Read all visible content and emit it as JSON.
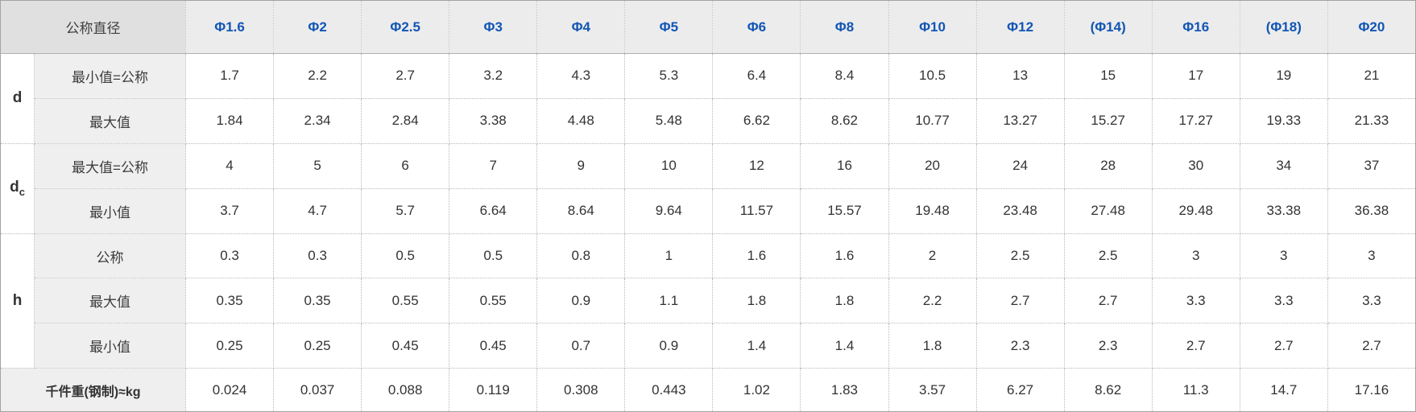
{
  "chart_data": {
    "type": "table",
    "corner_label": "公称直径",
    "columns": [
      "Φ1.6",
      "Φ2",
      "Φ2.5",
      "Φ3",
      "Φ4",
      "Φ5",
      "Φ6",
      "Φ8",
      "Φ10",
      "Φ12",
      "(Φ14)",
      "Φ16",
      "(Φ18)",
      "Φ20"
    ],
    "row_groups": [
      {
        "param": "d",
        "param_sub": "",
        "rows": [
          {
            "label": "最小值=公称",
            "values": [
              "1.7",
              "2.2",
              "2.7",
              "3.2",
              "4.3",
              "5.3",
              "6.4",
              "8.4",
              "10.5",
              "13",
              "15",
              "17",
              "19",
              "21"
            ]
          },
          {
            "label": "最大值",
            "values": [
              "1.84",
              "2.34",
              "2.84",
              "3.38",
              "4.48",
              "5.48",
              "6.62",
              "8.62",
              "10.77",
              "13.27",
              "15.27",
              "17.27",
              "19.33",
              "21.33"
            ]
          }
        ]
      },
      {
        "param": "d",
        "param_sub": "c",
        "rows": [
          {
            "label": "最大值=公称",
            "values": [
              "4",
              "5",
              "6",
              "7",
              "9",
              "10",
              "12",
              "16",
              "20",
              "24",
              "28",
              "30",
              "34",
              "37"
            ]
          },
          {
            "label": "最小值",
            "values": [
              "3.7",
              "4.7",
              "5.7",
              "6.64",
              "8.64",
              "9.64",
              "11.57",
              "15.57",
              "19.48",
              "23.48",
              "27.48",
              "29.48",
              "33.38",
              "36.38"
            ]
          }
        ]
      },
      {
        "param": "h",
        "param_sub": "",
        "rows": [
          {
            "label": "公称",
            "values": [
              "0.3",
              "0.3",
              "0.5",
              "0.5",
              "0.8",
              "1",
              "1.6",
              "1.6",
              "2",
              "2.5",
              "2.5",
              "3",
              "3",
              "3"
            ]
          },
          {
            "label": "最大值",
            "values": [
              "0.35",
              "0.35",
              "0.55",
              "0.55",
              "0.9",
              "1.1",
              "1.8",
              "1.8",
              "2.2",
              "2.7",
              "2.7",
              "3.3",
              "3.3",
              "3.3"
            ]
          },
          {
            "label": "最小值",
            "values": [
              "0.25",
              "0.25",
              "0.45",
              "0.45",
              "0.7",
              "0.9",
              "1.4",
              "1.4",
              "1.8",
              "2.3",
              "2.3",
              "2.7",
              "2.7",
              "2.7"
            ]
          }
        ]
      }
    ],
    "footer_row": {
      "label": "千件重(钢制)≈kg",
      "values": [
        "0.024",
        "0.037",
        "0.088",
        "0.119",
        "0.308",
        "0.443",
        "1.02",
        "1.83",
        "3.57",
        "6.27",
        "8.62",
        "11.3",
        "14.7",
        "17.16"
      ]
    }
  },
  "colors": {
    "header_corner_bg": "#e0e0e0",
    "header_bg": "#ececec",
    "label_bg": "#efefef",
    "accent_blue": "#1256b4",
    "text": "#3a3a3a",
    "grid_dotted": "#b8b8b8",
    "outer_border": "#a3a3a3"
  }
}
